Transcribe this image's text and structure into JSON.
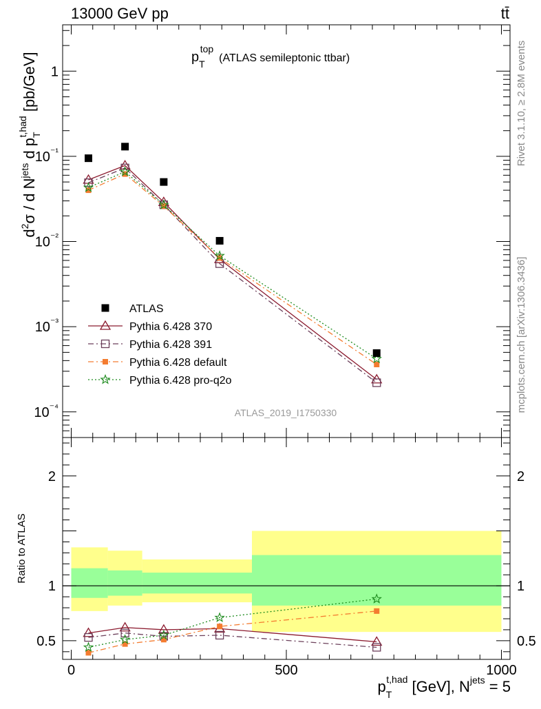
{
  "header": {
    "left_label": "13000 GeV pp",
    "right_label": "tt̄"
  },
  "side_notes": {
    "rivet": "Rivet 3.1.10, ≥ 2.8M events",
    "mcplots": "mcplots.cern.ch [arXiv:1306.3436]"
  },
  "chart_data": [
    {
      "type": "scatter",
      "title": "p_T^top (ATLAS semileptonic ttbar)",
      "title_main": "p",
      "title_sub": "T",
      "title_sup": "top",
      "title_rest": "(ATLAS semileptonic ttbar)",
      "ylabel": "d²σ / d N^jets d p_T^t,had [pb/GeV]",
      "yscale": "log",
      "ylim": [
        5e-05,
        3.5
      ],
      "xlim": [
        -20,
        1020
      ],
      "y_tick_labels": [
        "10⁻⁴",
        "10⁻³",
        "10⁻²",
        "10⁻¹",
        "1"
      ],
      "watermark": "ATLAS_2019_I1750330",
      "legend_position": "bottom-left",
      "series": [
        {
          "name": "ATLAS",
          "color": "#000000",
          "marker": "filled-square",
          "line": "none",
          "x": [
            40,
            125,
            215,
            345,
            710
          ],
          "y": [
            0.095,
            0.13,
            0.05,
            0.0102,
            0.00049
          ]
        },
        {
          "name": "Pythia 6.428 370",
          "color": "#8b1a2e",
          "marker": "open-triangle",
          "line": "solid",
          "x": [
            40,
            125,
            215,
            345,
            710
          ],
          "y": [
            0.053,
            0.078,
            0.029,
            0.0062,
            0.00024
          ]
        },
        {
          "name": "Pythia 6.428 391",
          "color": "#6b3f5a",
          "marker": "open-square",
          "line": "dash-dot",
          "x": [
            40,
            125,
            215,
            345,
            710
          ],
          "y": [
            0.049,
            0.073,
            0.027,
            0.0055,
            0.00022
          ]
        },
        {
          "name": "Pythia 6.428 default",
          "color": "#f47c30",
          "marker": "filled-square",
          "line": "dash-dot",
          "x": [
            40,
            125,
            215,
            345,
            710
          ],
          "y": [
            0.04,
            0.062,
            0.026,
            0.0064,
            0.00036
          ]
        },
        {
          "name": "Pythia 6.428 pro-q2o",
          "color": "#1c8a1c",
          "marker": "star",
          "line": "dotted",
          "x": [
            40,
            125,
            215,
            345,
            710
          ],
          "y": [
            0.043,
            0.066,
            0.027,
            0.0068,
            0.00042
          ]
        }
      ]
    },
    {
      "type": "scatter",
      "ylabel": "Ratio to ATLAS",
      "ylim": [
        0.33,
        2.35
      ],
      "xlim": [
        -20,
        1020
      ],
      "yticks": [
        0.5,
        1,
        2
      ],
      "y_tick_labels": [
        "0.5",
        "1",
        "2"
      ],
      "xticks": [
        0,
        500,
        1000
      ],
      "x_tick_labels": [
        "0",
        "500",
        "1000"
      ],
      "xlabel": "p_T^t,had [GeV], N^jets = 5",
      "reference_line": 1,
      "bands": [
        {
          "x_low": 0,
          "x_high": 85,
          "yellow": [
            0.77,
            1.35
          ],
          "green": [
            0.89,
            1.16
          ]
        },
        {
          "x_low": 85,
          "x_high": 165,
          "yellow": [
            0.82,
            1.32
          ],
          "green": [
            0.91,
            1.14
          ]
        },
        {
          "x_low": 165,
          "x_high": 420,
          "yellow": [
            0.85,
            1.24
          ],
          "green": [
            0.93,
            1.12
          ]
        },
        {
          "x_low": 420,
          "x_high": 1000,
          "yellow": [
            0.58,
            1.5
          ],
          "green": [
            0.82,
            1.28
          ]
        }
      ],
      "series": [
        {
          "name": "Pythia 6.428 370",
          "color": "#8b1a2e",
          "marker": "open-triangle",
          "line": "solid",
          "x": [
            40,
            125,
            215,
            345,
            710
          ],
          "y": [
            0.57,
            0.62,
            0.6,
            0.61,
            0.49
          ]
        },
        {
          "name": "Pythia 6.428 391",
          "color": "#6b3f5a",
          "marker": "open-square",
          "line": "dash-dot",
          "x": [
            40,
            125,
            215,
            345,
            710
          ],
          "y": [
            0.53,
            0.57,
            0.54,
            0.55,
            0.44
          ]
        },
        {
          "name": "Pythia 6.428 default",
          "color": "#f47c30",
          "marker": "filled-square",
          "line": "dash-dot",
          "x": [
            40,
            125,
            215,
            345,
            710
          ],
          "y": [
            0.39,
            0.47,
            0.51,
            0.63,
            0.77
          ]
        },
        {
          "name": "Pythia 6.428 pro-q2o",
          "color": "#1c8a1c",
          "marker": "star",
          "line": "dotted",
          "x": [
            40,
            125,
            215,
            345,
            710
          ],
          "y": [
            0.44,
            0.51,
            0.55,
            0.71,
            0.88
          ]
        }
      ]
    }
  ]
}
